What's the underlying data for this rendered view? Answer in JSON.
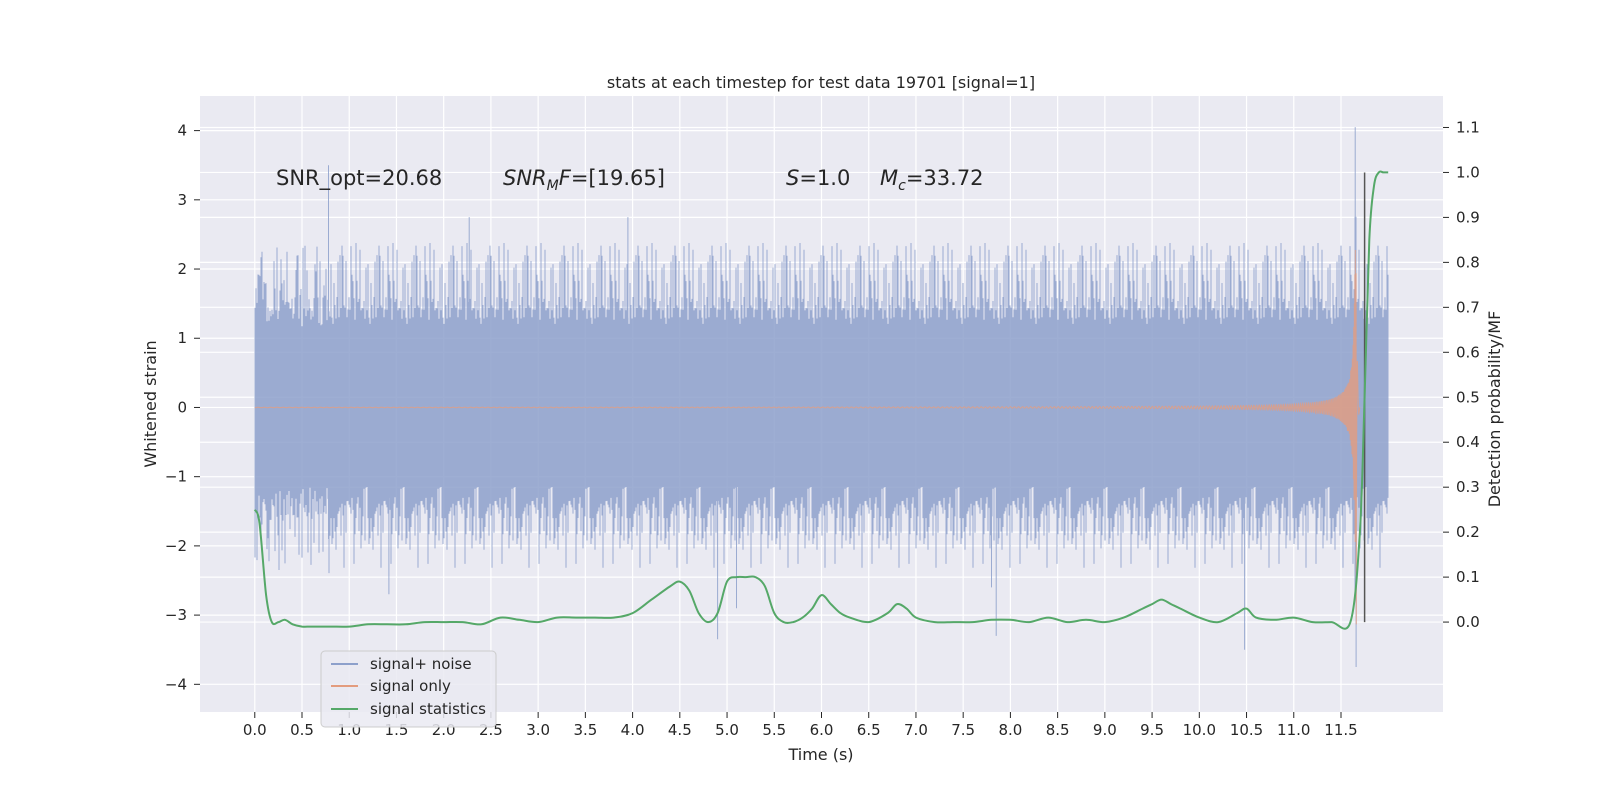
{
  "chart_data": {
    "type": "line",
    "title": "stats at each timestep for test data 19701 [signal=1]",
    "xlabel": "Time (s)",
    "ylabel_left": "Whitened strain",
    "ylabel_right": "Detection probability/MF",
    "xlim": [
      -0.58,
      12.58
    ],
    "ylim_left": [
      -4.4,
      4.5
    ],
    "ylim_right": [
      -0.2,
      1.17
    ],
    "x_ticks": [
      0.0,
      0.5,
      1.0,
      1.5,
      2.0,
      2.5,
      3.0,
      3.5,
      4.0,
      4.5,
      5.0,
      5.5,
      6.0,
      6.5,
      7.0,
      7.5,
      8.0,
      8.5,
      9.0,
      9.5,
      10.0,
      10.5,
      11.0,
      11.5
    ],
    "x_tick_labels": [
      "0.0",
      "0.5",
      "1.0",
      "1.5",
      "2.0",
      "2.5",
      "3.0",
      "3.5",
      "4.0",
      "4.5",
      "5.0",
      "5.5",
      "6.0",
      "6.5",
      "7.0",
      "7.5",
      "8.0",
      "8.5",
      "9.0",
      "9.5",
      "10.0",
      "10.5",
      "11.0",
      "11.5"
    ],
    "y_ticks_left": [
      4,
      3,
      2,
      1,
      0,
      -1,
      -2,
      -3,
      -4
    ],
    "y_tick_labels_left": [
      "4",
      "3",
      "2",
      "1",
      "0",
      "−1",
      "−2",
      "−3",
      "−4"
    ],
    "y_ticks_right": [
      1.1,
      1.0,
      0.9,
      0.8,
      0.7,
      0.6,
      0.5,
      0.4,
      0.3,
      0.2,
      0.1,
      0.0
    ],
    "y_tick_labels_right": [
      "1.1",
      "1.0",
      "0.9",
      "0.8",
      "0.7",
      "0.6",
      "0.5",
      "0.4",
      "0.3",
      "0.2",
      "0.1",
      "0.0"
    ],
    "annotations": [
      "SNR_opt=20.68",
      "SNR_MF=[19.65]",
      "S=1.0",
      "M_c=33.72"
    ],
    "legend": {
      "position": "lower-left",
      "entries": [
        "signal+ noise",
        "signal only",
        "signal statistics"
      ]
    },
    "series": [
      {
        "name": "signal+ noise",
        "axis": "left",
        "color": "#8da0cb",
        "description": "whitened noisy strain, dense oscillation roughly within -2.5..2.8 with spikes to 3.5 (t=0.78), -3.35 (t=4.9), 4.05 (t=11.65)",
        "t_start": 0.0,
        "t_end": 12.0,
        "envelope": [
          1.3,
          -1.3
        ],
        "spikes": [
          {
            "t": 0.78,
            "v": 3.5
          },
          {
            "t": 0.78,
            "v": -1.9
          },
          {
            "t": 1.42,
            "v": -2.7
          },
          {
            "t": 2.27,
            "v": 2.75
          },
          {
            "t": 3.95,
            "v": 2.75
          },
          {
            "t": 4.9,
            "v": -3.35
          },
          {
            "t": 5.1,
            "v": -2.9
          },
          {
            "t": 7.8,
            "v": -2.6
          },
          {
            "t": 7.85,
            "v": -3.3
          },
          {
            "t": 10.48,
            "v": -3.5
          },
          {
            "t": 11.65,
            "v": 4.05
          },
          {
            "t": 11.66,
            "v": -3.75
          }
        ]
      },
      {
        "name": "signal only",
        "axis": "left",
        "color": "#e39c7e",
        "description": "chirp signal, near zero until ~8 s, growing amplitude, peak ~3.5/-4.0 at t~11.66 s",
        "merger_time": 11.66,
        "peak_amplitude": 3.55,
        "min_amplitude": -4.0
      },
      {
        "name": "signal statistics",
        "axis": "right",
        "color": "#55a868",
        "x": [
          0.0,
          0.05,
          0.12,
          0.18,
          0.25,
          0.32,
          0.4,
          0.5,
          0.6,
          0.8,
          1.0,
          1.2,
          1.4,
          1.6,
          1.8,
          2.0,
          2.2,
          2.4,
          2.6,
          2.8,
          3.0,
          3.2,
          3.4,
          3.6,
          3.8,
          4.0,
          4.2,
          4.4,
          4.5,
          4.6,
          4.7,
          4.8,
          4.9,
          5.0,
          5.1,
          5.2,
          5.3,
          5.4,
          5.5,
          5.6,
          5.7,
          5.8,
          5.9,
          6.0,
          6.1,
          6.2,
          6.3,
          6.5,
          6.7,
          6.8,
          6.9,
          7.0,
          7.2,
          7.4,
          7.6,
          7.8,
          8.0,
          8.2,
          8.4,
          8.6,
          8.8,
          9.0,
          9.2,
          9.4,
          9.5,
          9.6,
          9.7,
          9.8,
          10.0,
          10.2,
          10.4,
          10.5,
          10.6,
          10.8,
          11.0,
          11.2,
          11.4,
          11.6,
          11.7,
          11.75,
          11.8,
          11.85,
          11.9,
          11.95,
          12.0
        ],
        "values": [
          0.25,
          0.22,
          0.06,
          0.0,
          0.0,
          0.005,
          -0.005,
          -0.01,
          -0.01,
          -0.01,
          -0.01,
          -0.005,
          -0.005,
          -0.005,
          0.0,
          0.0,
          0.0,
          -0.005,
          0.01,
          0.005,
          0.0,
          0.01,
          0.01,
          0.01,
          0.01,
          0.02,
          0.05,
          0.08,
          0.09,
          0.07,
          0.02,
          0.0,
          0.02,
          0.09,
          0.1,
          0.1,
          0.1,
          0.08,
          0.02,
          0.0,
          0.0,
          0.01,
          0.03,
          0.06,
          0.04,
          0.02,
          0.01,
          0.0,
          0.02,
          0.04,
          0.03,
          0.01,
          0.0,
          0.0,
          0.0,
          0.005,
          0.005,
          0.0,
          0.01,
          0.0,
          0.005,
          0.0,
          0.01,
          0.03,
          0.04,
          0.05,
          0.04,
          0.03,
          0.01,
          0.0,
          0.02,
          0.03,
          0.01,
          0.005,
          0.01,
          0.0,
          0.0,
          0.0,
          0.2,
          0.5,
          0.85,
          0.97,
          1.0,
          1.0,
          1.0
        ]
      },
      {
        "name": "marker",
        "axis": "right",
        "color": "#555555",
        "description": "vertical gray line at t=11.75 s from 0.0 to 1.0",
        "x": 11.75,
        "range": [
          0.0,
          1.0
        ]
      }
    ]
  }
}
